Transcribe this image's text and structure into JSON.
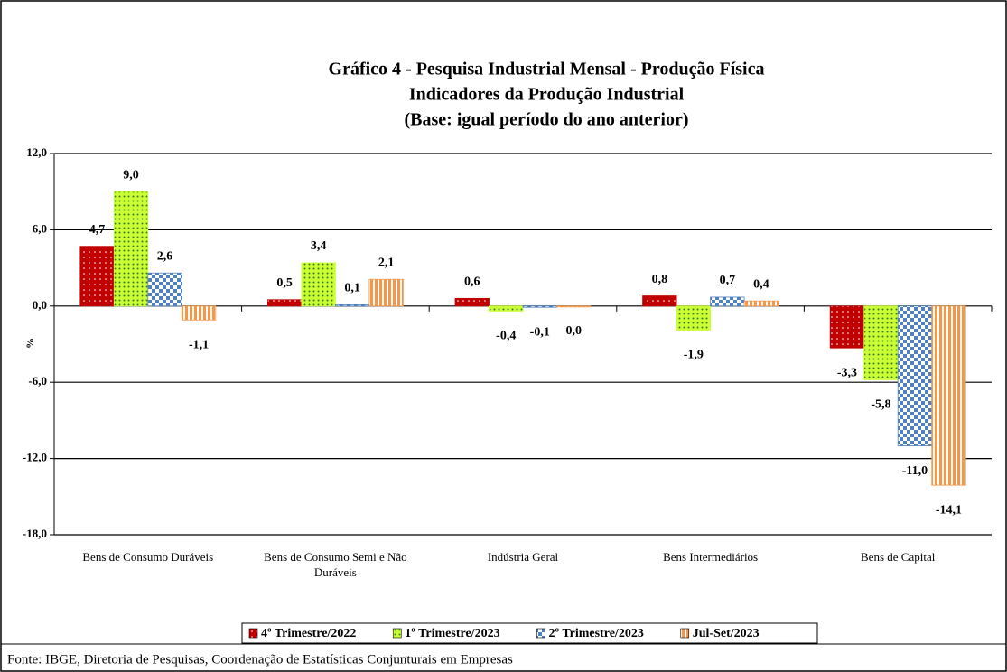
{
  "chart_data": {
    "type": "bar",
    "title": "Gráfico 4 - Pesquisa Industrial Mensal - Produção Física",
    "subtitle": "Indicadores da Produção Industrial",
    "subtitle2": "(Base: igual período do ano anterior)",
    "y_label": "%",
    "source": "Fonte: IBGE, Diretoria de Pesquisas, Coordenação de Estatísticas Conjunturais em Empresas",
    "categories": [
      "Bens de Consumo Duráveis",
      "Bens de Consumo Semi e Não Duráveis",
      "Indústria Geral",
      "Bens Intermediários",
      "Bens de Capital"
    ],
    "series": [
      {
        "name": "4º Trimestre/2022",
        "color": "#c00000",
        "values": [
          4.7,
          0.5,
          0.6,
          0.8,
          -3.3
        ],
        "value_labels": [
          "4,7",
          "0,5",
          "0,6",
          "0,8",
          "-3,3"
        ]
      },
      {
        "name": "1º Trimestre/2023",
        "color": "#ccff33",
        "values": [
          9.0,
          3.4,
          -0.4,
          -1.9,
          -5.8
        ],
        "value_labels": [
          "9,0",
          "3,4",
          "-0,4",
          "-1,9",
          "-5,8"
        ]
      },
      {
        "name": "2º Trimestre/2023",
        "color": "#4f81bd",
        "values": [
          2.6,
          0.1,
          -0.1,
          0.7,
          -11.0
        ],
        "value_labels": [
          "2,6",
          "0,1",
          "-0,1",
          "0,7",
          "-11,0"
        ]
      },
      {
        "name": "Jul-Set/2023",
        "color": "#f79646",
        "values": [
          -1.1,
          2.1,
          0.0,
          0.4,
          -14.1
        ],
        "value_labels": [
          "-1,1",
          "2,1",
          "0,0",
          "0,4",
          "-14,1"
        ]
      }
    ],
    "ylim": [
      -18,
      12
    ],
    "yticks": [
      {
        "value": -18,
        "label": "-18,0"
      },
      {
        "value": -12,
        "label": "-12,0"
      },
      {
        "value": -6,
        "label": "-6,0"
      },
      {
        "value": 0,
        "label": "0,0"
      },
      {
        "value": 6,
        "label": "6,0"
      },
      {
        "value": 12,
        "label": "12,0"
      }
    ],
    "grid": true,
    "legend": "bottom"
  }
}
